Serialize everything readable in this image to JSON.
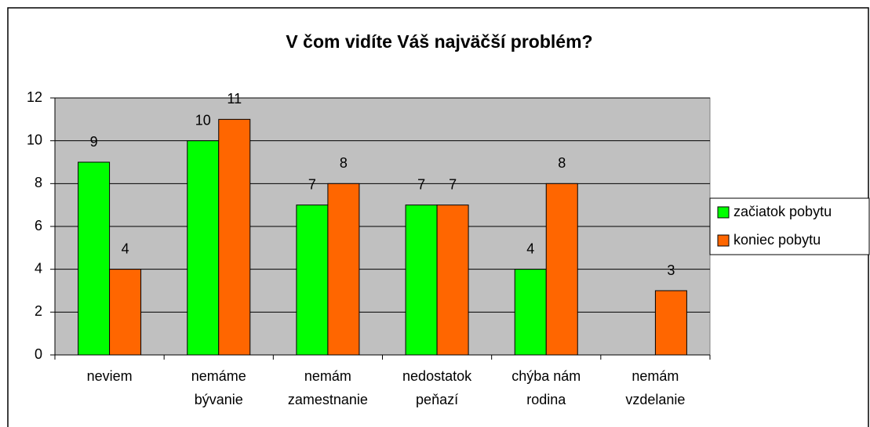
{
  "chart_data": {
    "type": "bar",
    "title": "V čom vidíte Váš najväčší problém?",
    "categories": [
      [
        "neviem"
      ],
      [
        "nemáme",
        "bývanie"
      ],
      [
        "nemám",
        "zamestnanie"
      ],
      [
        "nedostatok",
        "peňazí"
      ],
      [
        "chýba nám",
        "rodina"
      ],
      [
        "nemám",
        "vzdelanie"
      ]
    ],
    "series": [
      {
        "name": "začiatok pobytu",
        "color": "#00ff00",
        "values": [
          9,
          10,
          7,
          7,
          4,
          null
        ]
      },
      {
        "name": "koniec pobytu",
        "color": "#ff6600",
        "values": [
          4,
          11,
          8,
          7,
          8,
          3
        ]
      }
    ],
    "ylim": [
      0,
      12
    ],
    "yticks": [
      0,
      2,
      4,
      6,
      8,
      10,
      12
    ],
    "grid": true,
    "legend": "right"
  }
}
